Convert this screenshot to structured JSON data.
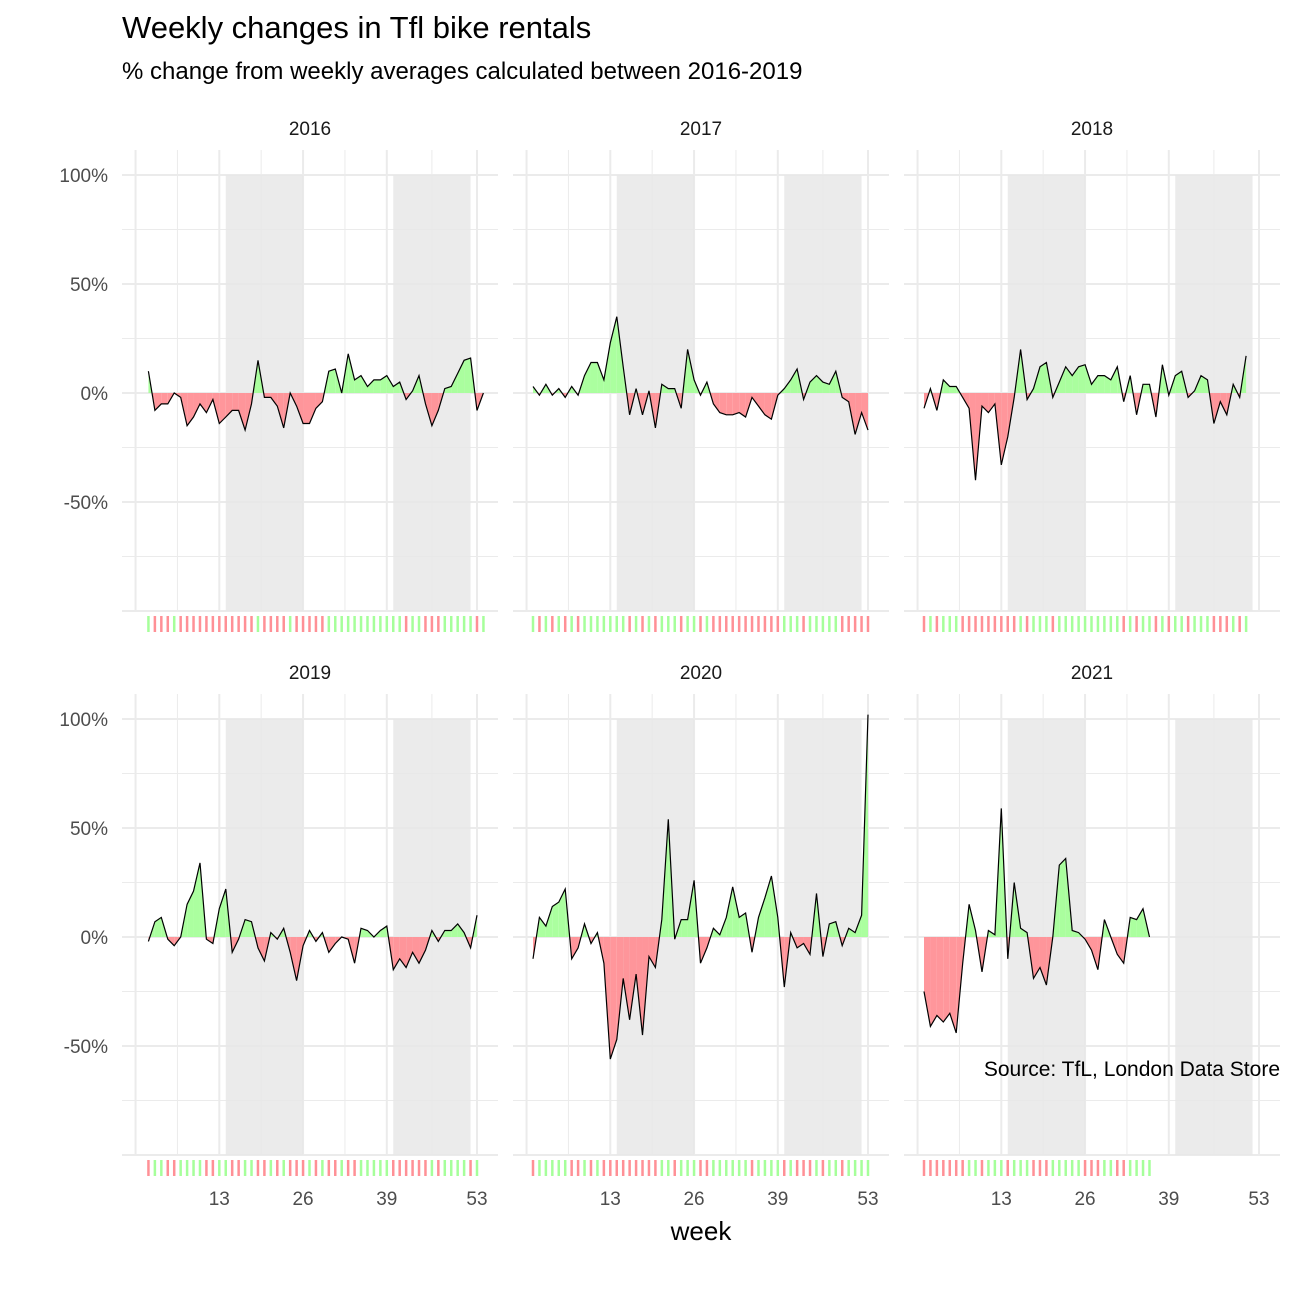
{
  "title": "Weekly changes in Tfl bike rentals",
  "subtitle": "% change from weekly averages calculated between 2016-2019",
  "caption": "Source: TfL, London Data Store",
  "colors": {
    "positive": "#a6ff9a",
    "negative": "#ff9096",
    "band": "#e8e8e8",
    "line": "#000000",
    "grid": "#ebebeb"
  },
  "chart_data": {
    "type": "area",
    "facet_by": "year",
    "xlabel": "week",
    "ylabel": "",
    "x_ticks": [
      13,
      26,
      39,
      53
    ],
    "y_ticks": [
      100,
      50,
      0,
      -50
    ],
    "y_tick_labels": [
      "100%",
      "50%",
      "0%",
      "-50%"
    ],
    "xlim": [
      1,
      53
    ],
    "ylim": [
      -100,
      100
    ],
    "shaded_weeks": [
      [
        14,
        26
      ],
      [
        40,
        52
      ]
    ],
    "grid": true,
    "panels": [
      {
        "year": "2016",
        "weeks_start": 2,
        "values": [
          10,
          -8,
          -5,
          -5,
          0,
          -2,
          -15,
          -11,
          -5,
          -9,
          -3,
          -14,
          -11,
          -8,
          -8,
          -17,
          -5,
          15,
          -2,
          -2,
          -6,
          -16,
          0,
          -6,
          -14,
          -14,
          -7,
          -4,
          10,
          11,
          0,
          18,
          6,
          8,
          3,
          6,
          6,
          8,
          3,
          5,
          -3,
          1,
          8,
          -5,
          -15,
          -8,
          2,
          3,
          9,
          15,
          16,
          -8,
          0
        ]
      },
      {
        "year": "2017",
        "weeks_start": 1,
        "values": [
          3,
          -1,
          4,
          -1,
          2,
          -2,
          3,
          -1,
          8,
          14,
          14,
          6,
          23,
          35,
          12,
          -10,
          2,
          -10,
          1,
          -16,
          4,
          2,
          2,
          -7,
          20,
          6,
          -1,
          5,
          -5,
          -9,
          -10,
          -10,
          -9,
          -11,
          -2,
          -6,
          -10,
          -12,
          -1,
          2,
          6,
          11,
          -3,
          5,
          8,
          5,
          4,
          10,
          -2,
          -4,
          -19,
          -9,
          -17
        ]
      },
      {
        "year": "2018",
        "weeks_start": 1,
        "values": [
          -7,
          2,
          -8,
          6,
          3,
          3,
          -2,
          -7,
          -40,
          -6,
          -9,
          -5,
          -33,
          -20,
          -2,
          20,
          -3,
          2,
          12,
          14,
          -2,
          5,
          12,
          8,
          12,
          13,
          4,
          8,
          8,
          6,
          12,
          -4,
          8,
          -10,
          4,
          4,
          -11,
          13,
          -1,
          8,
          10,
          -2,
          1,
          8,
          6,
          -14,
          -4,
          -10,
          4,
          -2,
          17
        ]
      },
      {
        "year": "2019",
        "weeks_start": 2,
        "values": [
          -2,
          7,
          9,
          -1,
          -4,
          0,
          15,
          21,
          34,
          -1,
          -3,
          13,
          22,
          -7,
          -1,
          8,
          7,
          -5,
          -11,
          2,
          -1,
          4,
          -7,
          -20,
          -4,
          3,
          -2,
          2,
          -7,
          -3,
          0,
          -1,
          -12,
          4,
          3,
          0,
          3,
          5,
          -15,
          -10,
          -14,
          -7,
          -12,
          -6,
          3,
          -2,
          3,
          3,
          6,
          2,
          -5,
          10
        ]
      },
      {
        "year": "2020",
        "weeks_start": 1,
        "values": [
          -10,
          9,
          5,
          14,
          16,
          22,
          -10,
          -5,
          6,
          -3,
          2,
          -12,
          -56,
          -47,
          -19,
          -38,
          -17,
          -45,
          -9,
          -14,
          8,
          54,
          -1,
          8,
          8,
          26,
          -12,
          -5,
          4,
          1,
          9,
          23,
          9,
          11,
          -7,
          9,
          18,
          28,
          9,
          -23,
          2,
          -5,
          -3,
          -8,
          20,
          -9,
          6,
          7,
          -4,
          4,
          2,
          10,
          102
        ]
      },
      {
        "year": "2021",
        "weeks_start": 1,
        "values": [
          -25,
          -41,
          -36,
          -39,
          -35,
          -44,
          -12,
          15,
          3,
          -16,
          3,
          1,
          59,
          -10,
          25,
          4,
          2,
          -19,
          -14,
          -22,
          0,
          33,
          36,
          3,
          2,
          -1,
          -6,
          -15,
          8,
          0,
          -8,
          -12,
          9,
          8,
          13,
          0
        ]
      }
    ]
  }
}
